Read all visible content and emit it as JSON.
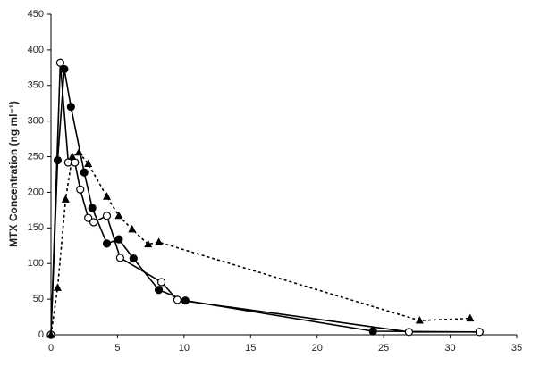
{
  "chart_data": {
    "type": "line",
    "y_label": "MTX Concentration (ng ml⁻¹)",
    "xlim": [
      0,
      35
    ],
    "xticks": [
      0,
      5,
      10,
      15,
      20,
      25,
      30,
      35
    ],
    "ylim": [
      0,
      450
    ],
    "yticks": [
      0,
      50,
      100,
      150,
      200,
      250,
      300,
      350,
      400,
      450
    ],
    "grid": false,
    "series": [
      {
        "color": "#000000",
        "marker": "filled-circle",
        "dashed": false,
        "x": [
          0,
          0.5,
          1.0,
          1.5,
          2.5,
          3.1,
          4.2,
          5.1,
          6.2,
          8.1,
          10.1,
          24.2,
          32.2
        ],
        "values": [
          0,
          245,
          373,
          320,
          228,
          178,
          128,
          134,
          107,
          63,
          48,
          5,
          4
        ]
      },
      {
        "color": "#000000",
        "marker": "open-circle",
        "dashed": false,
        "x": [
          0,
          0.7,
          1.3,
          1.8,
          2.2,
          2.8,
          3.2,
          4.2,
          5.2,
          8.3,
          9.5,
          26.9,
          32.2
        ],
        "values": [
          0,
          382,
          242,
          242,
          204,
          164,
          158,
          167,
          108,
          74,
          49,
          4,
          4
        ]
      },
      {
        "color": "#000000",
        "marker": "triangle",
        "dashed": true,
        "x": [
          0,
          0.5,
          1.1,
          1.6,
          2.1,
          2.8,
          4.2,
          5.1,
          6.1,
          7.3,
          8.1,
          27.7,
          31.5
        ],
        "values": [
          0,
          66,
          190,
          250,
          256,
          240,
          194,
          167,
          148,
          127,
          130,
          20,
          23
        ]
      }
    ]
  }
}
